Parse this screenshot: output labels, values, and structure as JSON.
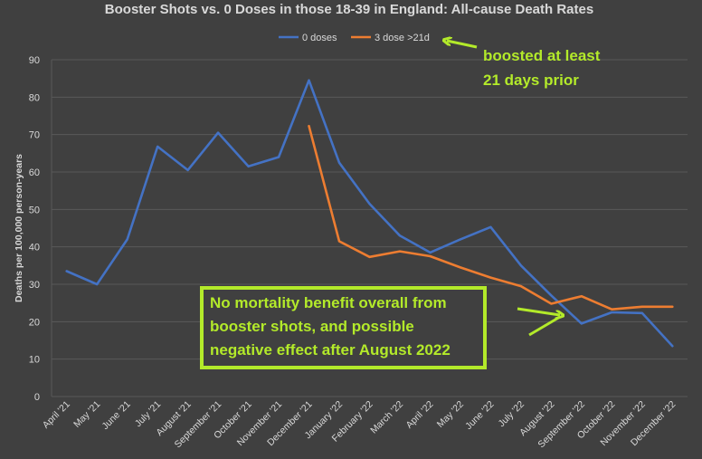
{
  "chart_data": {
    "type": "line",
    "title": "Booster Shots vs. 0 Doses in those 18-39 in England: All-cause Death Rates",
    "ylabel": "Deaths per 100,000 person-years",
    "xlabel": "",
    "ylim": [
      0,
      90
    ],
    "yticks": [
      "0",
      "10",
      "20",
      "30",
      "40",
      "50",
      "60",
      "70",
      "80",
      "90"
    ],
    "grid": true,
    "legend_position": "top",
    "categories": [
      "April '21",
      "May '21",
      "June '21",
      "July '21",
      "August '21",
      "September '21",
      "October '21",
      "November '21",
      "December '21",
      "January '22",
      "February '22",
      "March '22",
      "April '22",
      "May '22",
      "June '22",
      "July '22",
      "August '22",
      "September '22",
      "October '22",
      "November '22",
      "December '22"
    ],
    "series": [
      {
        "name": "0 doses",
        "color": "#4472c4",
        "values": [
          33.5,
          30,
          42,
          66.8,
          60.5,
          70.5,
          61.5,
          64,
          84.5,
          62.5,
          51.5,
          43,
          38.5,
          42,
          45.3,
          35,
          27,
          19.5,
          22.5,
          22.3,
          13.5
        ]
      },
      {
        "name": "3 dose >21d",
        "color": "#ed7d31",
        "values": [
          null,
          null,
          null,
          null,
          null,
          null,
          null,
          null,
          72.3,
          41.5,
          37.3,
          38.8,
          37.5,
          34.5,
          31.8,
          29.5,
          24.8,
          26.8,
          23.3,
          24,
          24
        ]
      }
    ],
    "annotations": {
      "boosted_note": [
        "boosted at least",
        "21 days prior"
      ],
      "conclusion_box": [
        "No mortality benefit overall from",
        "booster shots, and possible",
        "negative effect after August 2022"
      ],
      "accent_color": "#b3ea2a"
    }
  }
}
